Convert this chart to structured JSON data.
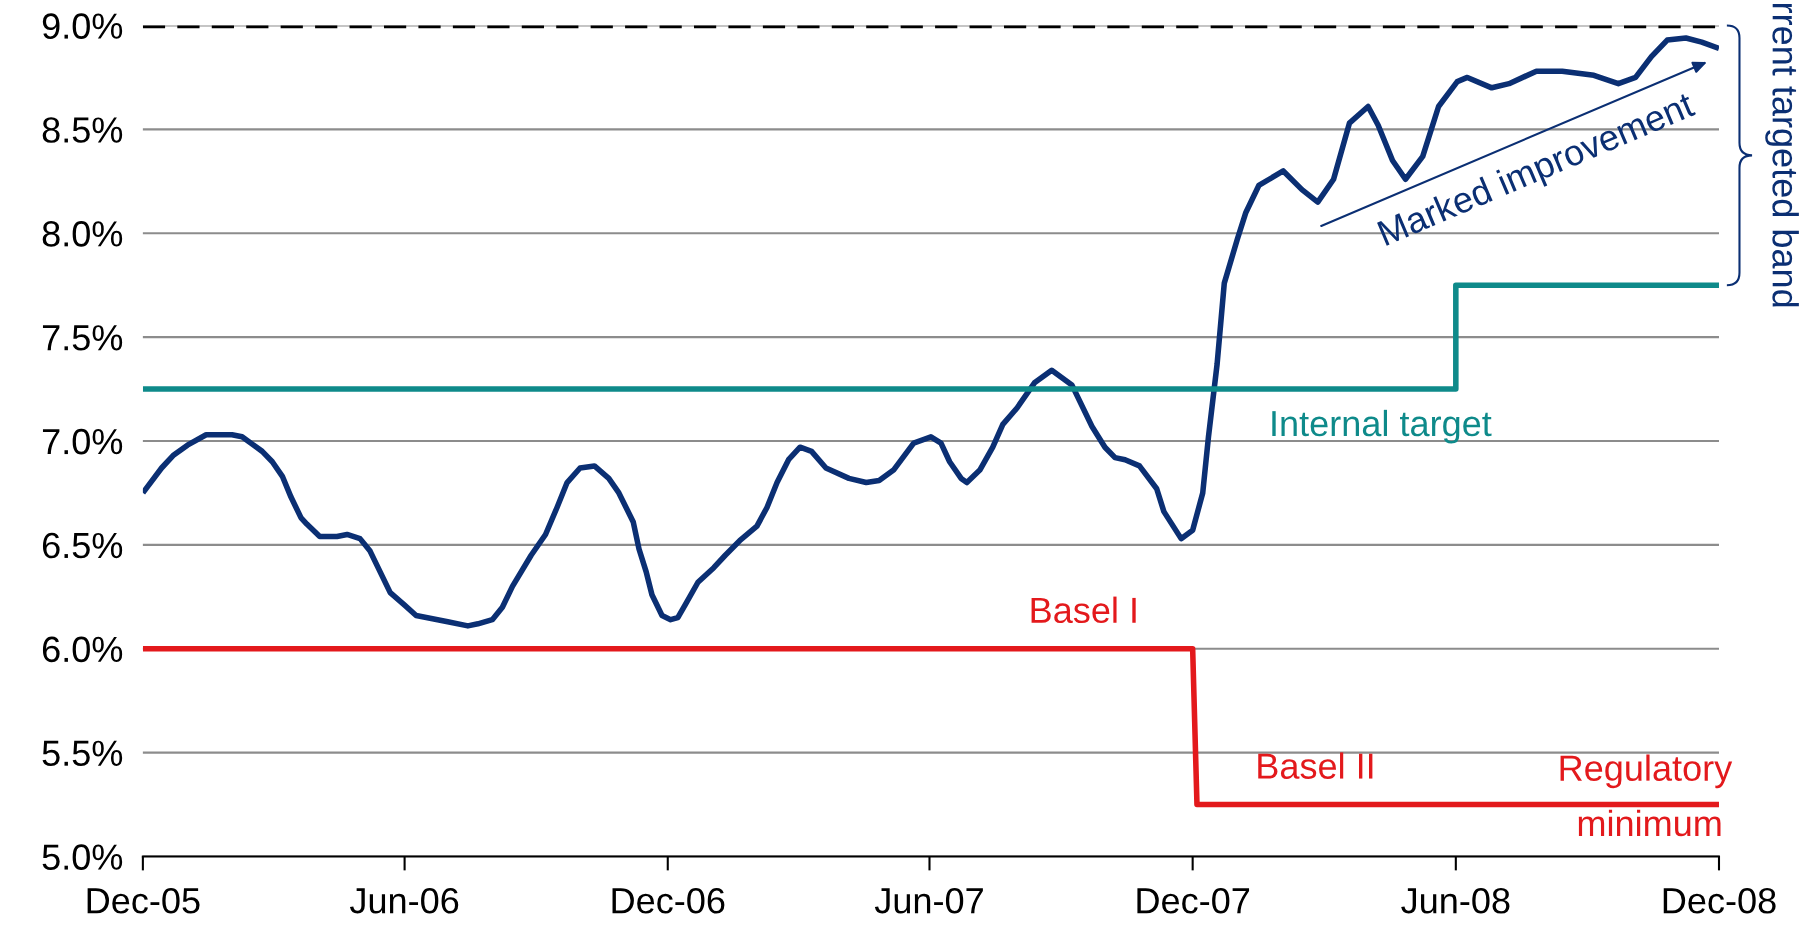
{
  "chart_data": {
    "type": "line",
    "xlim": [
      "2005-12-01",
      "2008-12-01"
    ],
    "xticks": [
      {
        "value": "2005-12-01",
        "label": "Dec-05"
      },
      {
        "value": "2006-06-01",
        "label": "Jun-06"
      },
      {
        "value": "2006-12-01",
        "label": "Dec-06"
      },
      {
        "value": "2007-06-01",
        "label": "Jun-07"
      },
      {
        "value": "2007-12-01",
        "label": "Dec-07"
      },
      {
        "value": "2008-06-01",
        "label": "Jun-08"
      },
      {
        "value": "2008-12-01",
        "label": "Dec-08"
      }
    ],
    "ylim": [
      5.0,
      9.0
    ],
    "yticks": [
      {
        "value": 5.0,
        "label": "5.0%"
      },
      {
        "value": 5.5,
        "label": "5.5%"
      },
      {
        "value": 6.0,
        "label": "6.0%"
      },
      {
        "value": 6.5,
        "label": "6.5%"
      },
      {
        "value": 7.0,
        "label": "7.0%"
      },
      {
        "value": 7.5,
        "label": "7.5%"
      },
      {
        "value": 8.0,
        "label": "8.0%"
      },
      {
        "value": 8.5,
        "label": "8.5%"
      },
      {
        "value": 9.0,
        "label": "9.0%"
      }
    ],
    "grid": "y",
    "marker": "none",
    "series": [
      {
        "color": "#0b2f73",
        "x": [
          "2005-12-01",
          "2005-12-14",
          "2005-12-22",
          "2006-01-01",
          "2006-01-14",
          "2006-02-01",
          "2006-02-08",
          "2006-02-22",
          "2006-03-01",
          "2006-03-08",
          "2006-03-14",
          "2006-03-21",
          "2006-03-25",
          "2006-04-03",
          "2006-04-15",
          "2006-04-22",
          "2006-05-01",
          "2006-05-08",
          "2006-05-22",
          "2006-06-01",
          "2006-06-09",
          "2006-07-01",
          "2006-07-15",
          "2006-07-22",
          "2006-08-01",
          "2006-08-08",
          "2006-08-15",
          "2006-08-28",
          "2006-09-07",
          "2006-09-15",
          "2006-09-22",
          "2006-10-01",
          "2006-10-11",
          "2006-10-21",
          "2006-10-28",
          "2006-11-07",
          "2006-11-11",
          "2006-11-16",
          "2006-11-20",
          "2006-11-27",
          "2006-12-03",
          "2006-12-08",
          "2006-12-13",
          "2006-12-22",
          "2007-01-02",
          "2007-01-10",
          "2007-01-20",
          "2007-02-01",
          "2007-02-08",
          "2007-02-15",
          "2007-02-23",
          "2007-03-03",
          "2007-03-11",
          "2007-03-21",
          "2007-04-06",
          "2007-04-18",
          "2007-04-27",
          "2007-05-07",
          "2007-05-21",
          "2007-06-02",
          "2007-06-09",
          "2007-06-15",
          "2007-06-23",
          "2007-06-27",
          "2007-07-06",
          "2007-07-15",
          "2007-07-22",
          "2007-08-01",
          "2007-08-13",
          "2007-08-25",
          "2007-09-08",
          "2007-09-22",
          "2007-10-01",
          "2007-10-08",
          "2007-10-15",
          "2007-10-25",
          "2007-11-06",
          "2007-11-11",
          "2007-11-23",
          "2007-12-01",
          "2007-12-08",
          "2007-12-12",
          "2007-12-18",
          "2007-12-23",
          "2008-01-01",
          "2008-01-07",
          "2008-01-16",
          "2008-02-02",
          "2008-02-15",
          "2008-02-26",
          "2008-03-08",
          "2008-03-19",
          "2008-04-01",
          "2008-04-08",
          "2008-04-18",
          "2008-04-27",
          "2008-05-09",
          "2008-05-20",
          "2008-06-02",
          "2008-06-09",
          "2008-06-26",
          "2008-07-08",
          "2008-07-27",
          "2008-08-14",
          "2008-09-05",
          "2008-09-22",
          "2008-10-04",
          "2008-10-15",
          "2008-10-26",
          "2008-11-08",
          "2008-11-19",
          "2008-12-01"
        ],
        "values": [
          6.75,
          6.87,
          6.93,
          6.98,
          7.03,
          7.03,
          7.02,
          6.95,
          6.9,
          6.83,
          6.73,
          6.63,
          6.6,
          6.54,
          6.54,
          6.55,
          6.53,
          6.47,
          6.27,
          6.21,
          6.16,
          6.13,
          6.11,
          6.12,
          6.14,
          6.2,
          6.3,
          6.45,
          6.55,
          6.68,
          6.8,
          6.87,
          6.88,
          6.82,
          6.75,
          6.61,
          6.48,
          6.37,
          6.26,
          6.16,
          6.14,
          6.15,
          6.21,
          6.32,
          6.39,
          6.45,
          6.52,
          6.59,
          6.68,
          6.8,
          6.91,
          6.97,
          6.95,
          6.87,
          6.82,
          6.8,
          6.81,
          6.86,
          6.99,
          7.02,
          6.99,
          6.9,
          6.82,
          6.8,
          6.86,
          6.97,
          7.08,
          7.16,
          7.28,
          7.34,
          7.27,
          7.07,
          6.97,
          6.92,
          6.91,
          6.88,
          6.77,
          6.66,
          6.53,
          6.57,
          6.75,
          7.02,
          7.37,
          7.76,
          7.97,
          8.1,
          8.23,
          8.3,
          8.21,
          8.15,
          8.26,
          8.53,
          8.61,
          8.52,
          8.35,
          8.26,
          8.37,
          8.61,
          8.73,
          8.75,
          8.7,
          8.72,
          8.78,
          8.78,
          8.76,
          8.72,
          8.75,
          8.85,
          8.93,
          8.94,
          8.92,
          8.89
        ]
      },
      {
        "name": "Internal target",
        "color": "#0e8a8a",
        "x": [
          "2005-12-01",
          "2008-06-01",
          "2008-06-01",
          "2008-12-01"
        ],
        "values": [
          7.25,
          7.25,
          7.75,
          7.75
        ]
      },
      {
        "color": "#e3191c",
        "x": [
          "2005-12-01",
          "2007-12-01",
          "2007-12-04",
          "2008-12-01"
        ],
        "values": [
          6.0,
          6.0,
          5.25,
          5.25
        ]
      }
    ],
    "ref_lines": [
      {
        "axis": "y",
        "value": 9.0,
        "color": "#000000",
        "line_style": "dashed"
      }
    ],
    "annotations": [
      "Basel I",
      "Basel II",
      "Regulatory",
      "minimum",
      "Marked improvement",
      "rrent targeted band"
    ]
  }
}
